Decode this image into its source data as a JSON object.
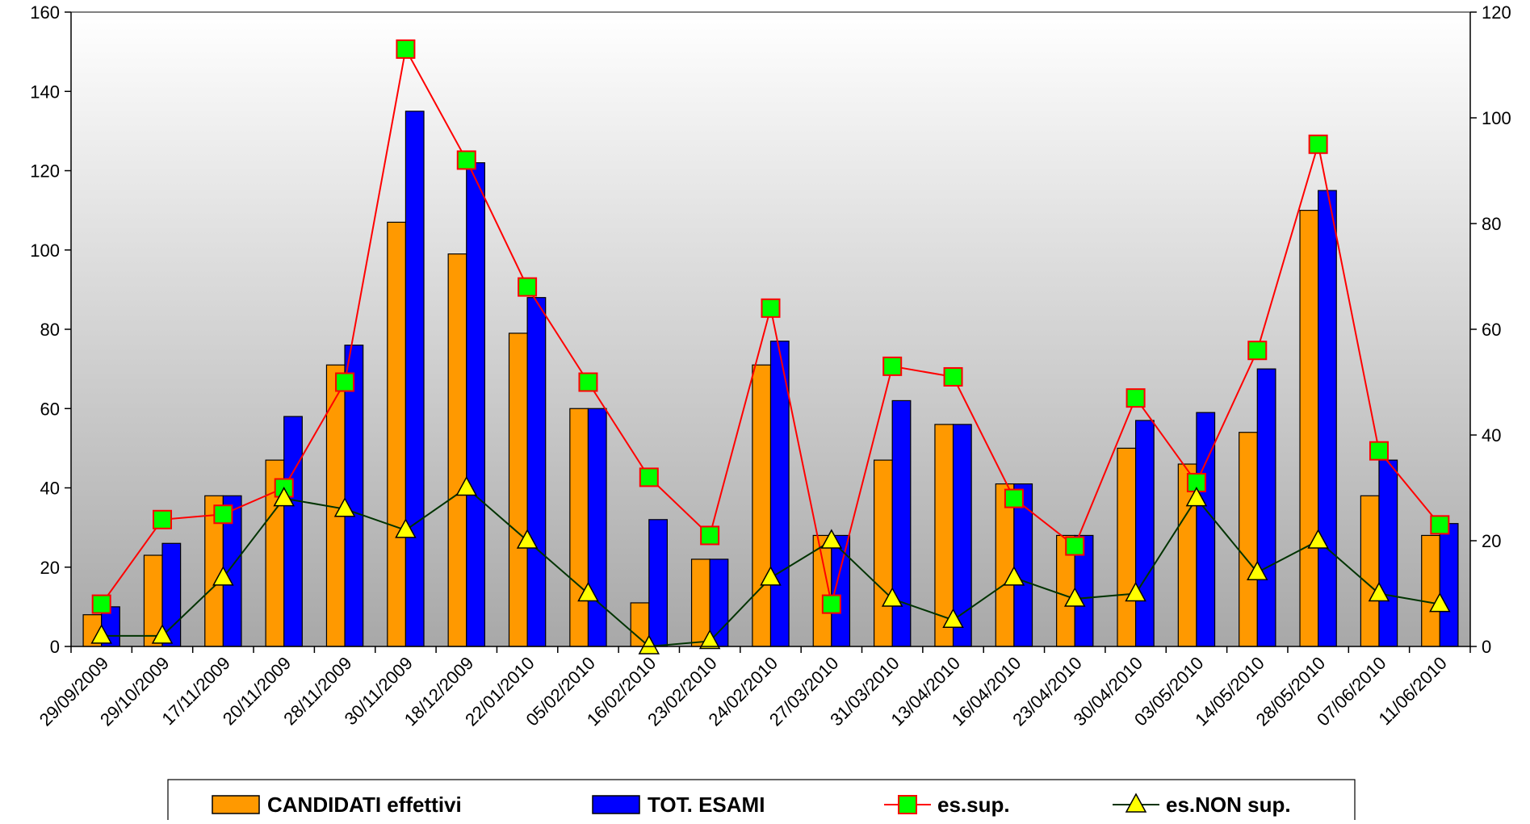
{
  "chart_data": {
    "type": "bar",
    "categories": [
      "29/09/2009",
      "29/10/2009",
      "17/11/2009",
      "20/11/2009",
      "28/11/2009",
      "30/11/2009",
      "18/12/2009",
      "22/01/2010",
      "05/02/2010",
      "16/02/2010",
      "23/02/2010",
      "24/02/2010",
      "27/03/2010",
      "31/03/2010",
      "13/04/2010",
      "16/04/2010",
      "23/04/2010",
      "30/04/2010",
      "03/05/2010",
      "14/05/2010",
      "28/05/2010",
      "07/06/2010",
      "11/06/2010"
    ],
    "series": [
      {
        "name": "CANDIDATI effettivi",
        "type": "bar",
        "axis": "left",
        "color": "#FF9900",
        "values": [
          8,
          23,
          38,
          47,
          71,
          107,
          99,
          79,
          60,
          11,
          22,
          71,
          28,
          47,
          56,
          41,
          28,
          50,
          46,
          54,
          110,
          38,
          28
        ]
      },
      {
        "name": "TOT. ESAMI",
        "type": "bar",
        "axis": "left",
        "color": "#0000FF",
        "values": [
          10,
          26,
          38,
          58,
          76,
          135,
          122,
          88,
          60,
          32,
          22,
          77,
          28,
          62,
          56,
          41,
          28,
          57,
          59,
          70,
          115,
          47,
          31
        ]
      },
      {
        "name": "es.sup.",
        "type": "line",
        "axis": "right",
        "color": "#FF0000",
        "marker": "square",
        "marker_color": "#00FF00",
        "values": [
          8,
          24,
          25,
          30,
          50,
          113,
          92,
          68,
          50,
          32,
          21,
          64,
          8,
          53,
          51,
          28,
          19,
          47,
          31,
          56,
          95,
          37,
          23
        ]
      },
      {
        "name": "es.NON sup.",
        "type": "line",
        "axis": "right",
        "color": "#003300",
        "marker": "triangle",
        "marker_color": "#FFFF00",
        "values": [
          2,
          2,
          13,
          28,
          26,
          22,
          30,
          20,
          10,
          0,
          1,
          13,
          20,
          9,
          5,
          13,
          9,
          10,
          28,
          14,
          20,
          10,
          8
        ]
      }
    ],
    "y_left": {
      "ticks": [
        "0",
        "20",
        "40",
        "60",
        "80",
        "100",
        "120",
        "140",
        "160"
      ],
      "ylim": [
        0,
        160
      ]
    },
    "y_right": {
      "ticks": [
        "0",
        "20",
        "40",
        "60",
        "80",
        "100",
        "120"
      ],
      "ylim": [
        0,
        120
      ]
    },
    "background": "gradient white-to-grey",
    "grid": false,
    "legend_position": "bottom"
  }
}
